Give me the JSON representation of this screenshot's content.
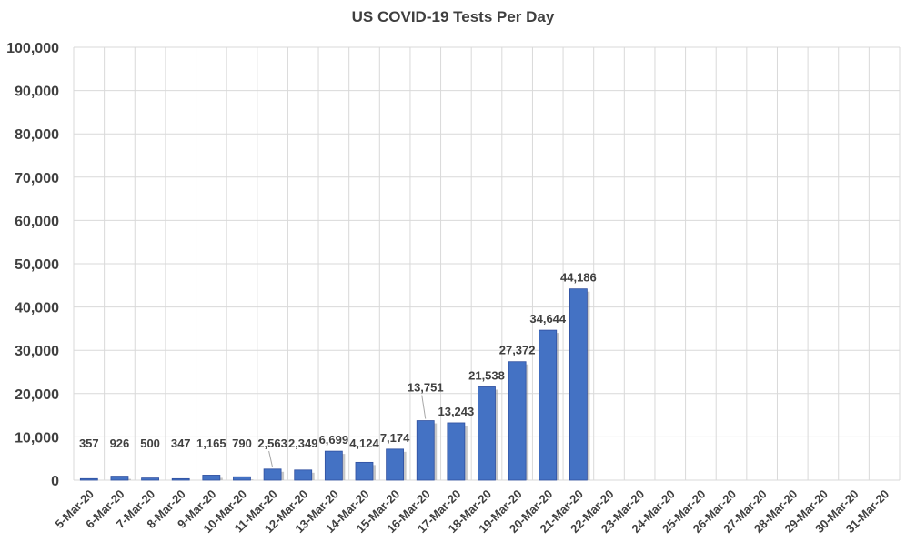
{
  "chart_data": {
    "type": "bar",
    "title": "US COVID-19 Tests Per Day",
    "xlabel": "",
    "ylabel": "",
    "ylim": [
      0,
      100000
    ],
    "y_ticks": [
      "0",
      "10,000",
      "20,000",
      "30,000",
      "40,000",
      "50,000",
      "60,000",
      "70,000",
      "80,000",
      "90,000",
      "100,000"
    ],
    "grid": true,
    "legend": "none",
    "categories": [
      "5-Mar-20",
      "6-Mar-20",
      "7-Mar-20",
      "8-Mar-20",
      "9-Mar-20",
      "10-Mar-20",
      "11-Mar-20",
      "12-Mar-20",
      "13-Mar-20",
      "14-Mar-20",
      "15-Mar-20",
      "16-Mar-20",
      "17-Mar-20",
      "18-Mar-20",
      "19-Mar-20",
      "20-Mar-20",
      "21-Mar-20",
      "22-Mar-20",
      "23-Mar-20",
      "24-Mar-20",
      "25-Mar-20",
      "26-Mar-20",
      "27-Mar-20",
      "28-Mar-20",
      "29-Mar-20",
      "30-Mar-20",
      "31-Mar-20"
    ],
    "values": [
      357,
      926,
      500,
      347,
      1165,
      790,
      2563,
      2349,
      6699,
      4124,
      7174,
      13751,
      13243,
      21538,
      27372,
      34644,
      44186,
      null,
      null,
      null,
      null,
      null,
      null,
      null,
      null,
      null,
      null
    ],
    "value_labels": [
      "357",
      "926",
      "500",
      "347",
      "1,165",
      "790",
      "2,563",
      "2,349",
      "6,699",
      "4,124",
      "7,174",
      "13,751",
      "13,243",
      "21,538",
      "27,372",
      "34,644",
      "44,186",
      "",
      "",
      "",
      "",
      "",
      "",
      "",
      "",
      "",
      ""
    ],
    "colors": {
      "bar": "#4472c4",
      "bar_edge": "#2f4f9f",
      "bar_shadow": "#9a9a9a",
      "grid": "#d9d9d9",
      "text": "#404040"
    }
  }
}
